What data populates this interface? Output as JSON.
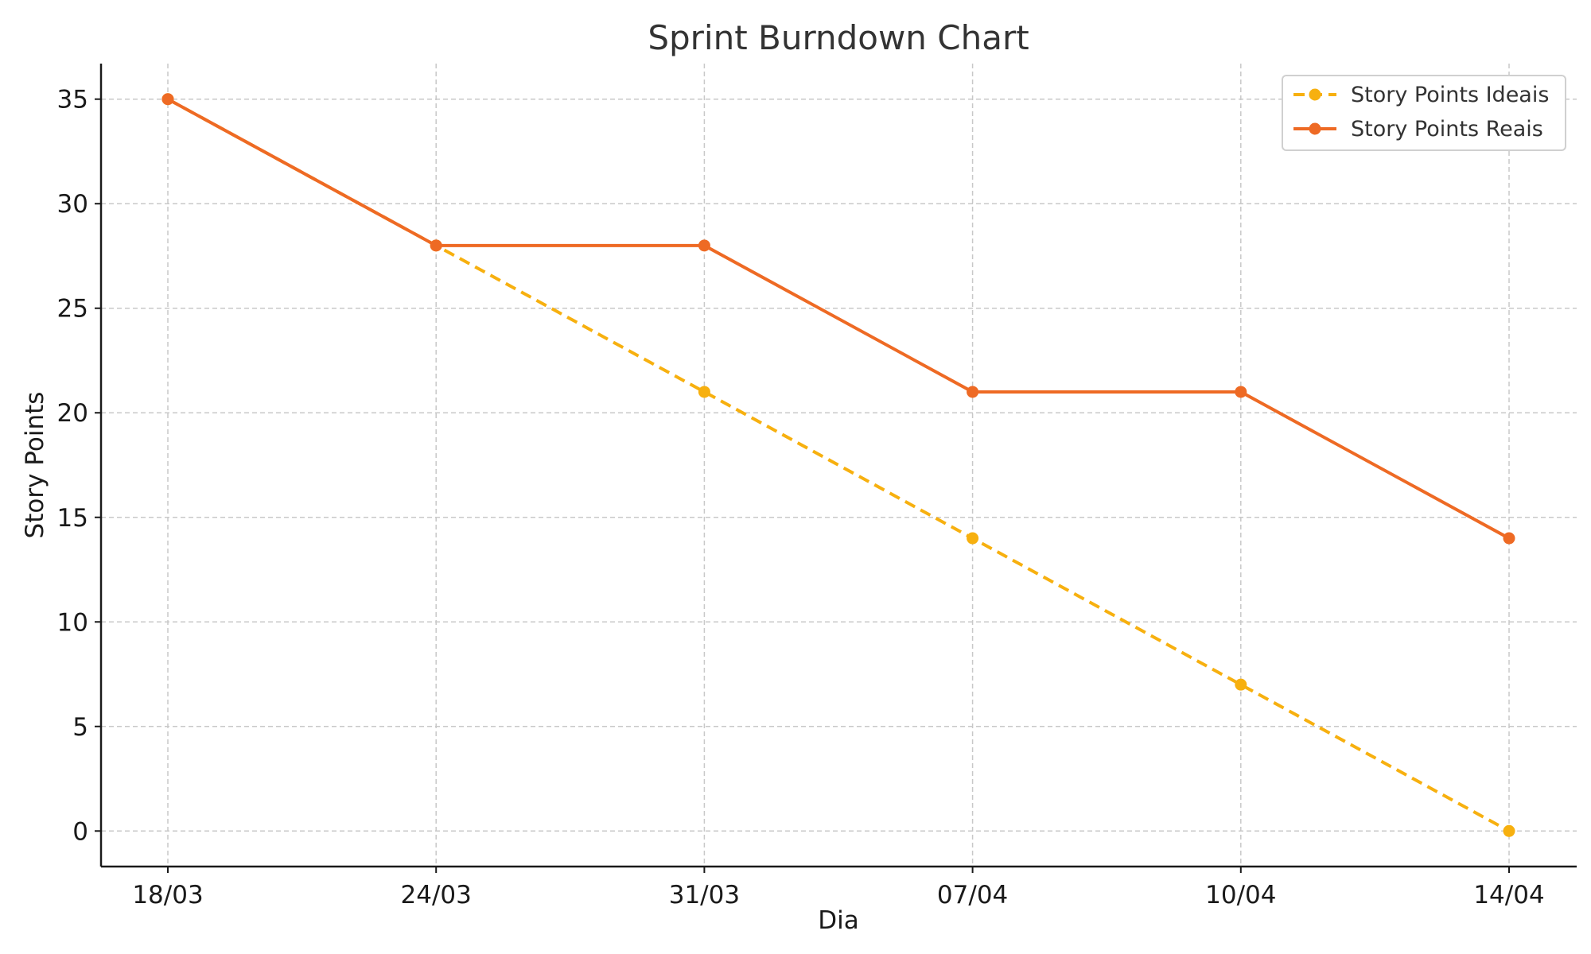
{
  "chart_data": {
    "type": "line",
    "title": "Sprint Burndown Chart",
    "xlabel": "Dia",
    "ylabel": "Story Points",
    "categories": [
      "18/03",
      "24/03",
      "31/03",
      "07/04",
      "10/04",
      "14/04"
    ],
    "ylim": [
      -1.7,
      36.7
    ],
    "yticks": [
      0,
      5,
      10,
      15,
      20,
      25,
      30,
      35
    ],
    "grid": true,
    "legend_position": "top-right",
    "series": [
      {
        "name": "Story Points Ideais",
        "values": [
          35,
          28,
          21,
          14,
          7,
          0
        ],
        "color": "#f7b00f",
        "line_style": "dashed",
        "marker": "circle"
      },
      {
        "name": "Story Points Reais",
        "values": [
          35,
          28,
          28,
          21,
          21,
          14
        ],
        "color": "#ee6a24",
        "line_style": "solid",
        "marker": "circle"
      }
    ]
  }
}
